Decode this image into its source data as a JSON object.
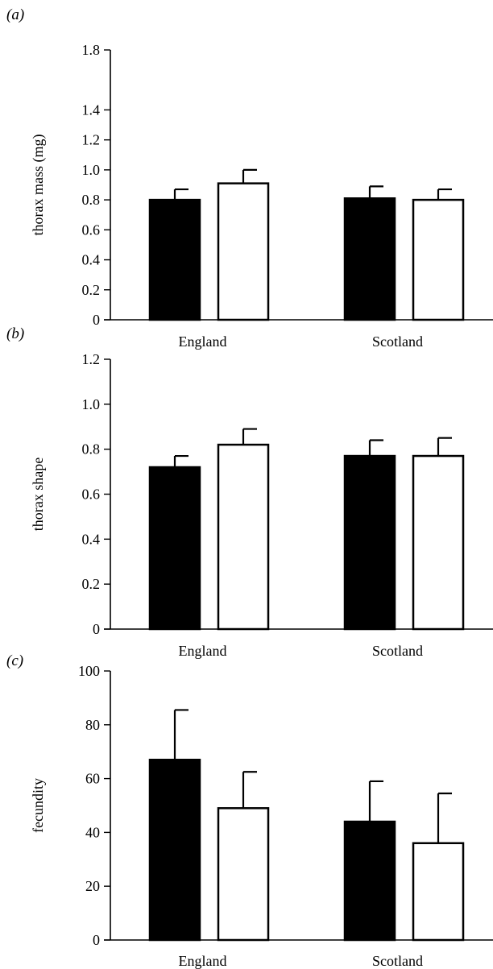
{
  "chart_data": [
    {
      "panel_label": "(a)",
      "type": "bar",
      "categories": [
        "England",
        "Scotland"
      ],
      "series": [
        {
          "color": "#000000",
          "values": [
            0.8,
            0.81
          ],
          "errors": [
            0.07,
            0.08
          ]
        },
        {
          "color": "#ffffff",
          "values": [
            0.91,
            0.8
          ],
          "errors": [
            0.09,
            0.07
          ]
        }
      ],
      "ylabel": "thorax mass (mg)",
      "ylim": [
        0,
        1.8
      ],
      "yticks": [
        "0",
        "0.2",
        "0.4",
        "0.6",
        "0.8",
        "1.0",
        "1.2",
        "1.4",
        "1.8"
      ],
      "ytick_values": [
        0,
        0.2,
        0.4,
        0.6,
        0.8,
        1.0,
        1.2,
        1.4,
        1.8
      ],
      "grid": false,
      "legend": "none"
    },
    {
      "panel_label": "(b)",
      "type": "bar",
      "categories": [
        "England",
        "Scotland"
      ],
      "series": [
        {
          "color": "#000000",
          "values": [
            0.72,
            0.77
          ],
          "errors": [
            0.05,
            0.07
          ]
        },
        {
          "color": "#ffffff",
          "values": [
            0.82,
            0.77
          ],
          "errors": [
            0.07,
            0.08
          ]
        }
      ],
      "ylabel": "thorax shape",
      "ylim": [
        0,
        1.2
      ],
      "yticks": [
        "0",
        "0.2",
        "0.4",
        "0.6",
        "0.8",
        "1.0",
        "1.2"
      ],
      "ytick_values": [
        0,
        0.2,
        0.4,
        0.6,
        0.8,
        1.0,
        1.2
      ],
      "grid": false,
      "legend": "none"
    },
    {
      "panel_label": "(c)",
      "type": "bar",
      "categories": [
        "England",
        "Scotland"
      ],
      "series": [
        {
          "color": "#000000",
          "values": [
            67,
            44
          ],
          "errors": [
            18.5,
            15
          ]
        },
        {
          "color": "#ffffff",
          "values": [
            49,
            36
          ],
          "errors": [
            13.5,
            18.5
          ]
        }
      ],
      "ylabel": "fecundity",
      "ylim": [
        0,
        100
      ],
      "yticks": [
        "0",
        "20",
        "40",
        "60",
        "80",
        "100"
      ],
      "ytick_values": [
        0,
        20,
        40,
        60,
        80,
        100
      ],
      "grid": false,
      "legend": "none"
    }
  ]
}
